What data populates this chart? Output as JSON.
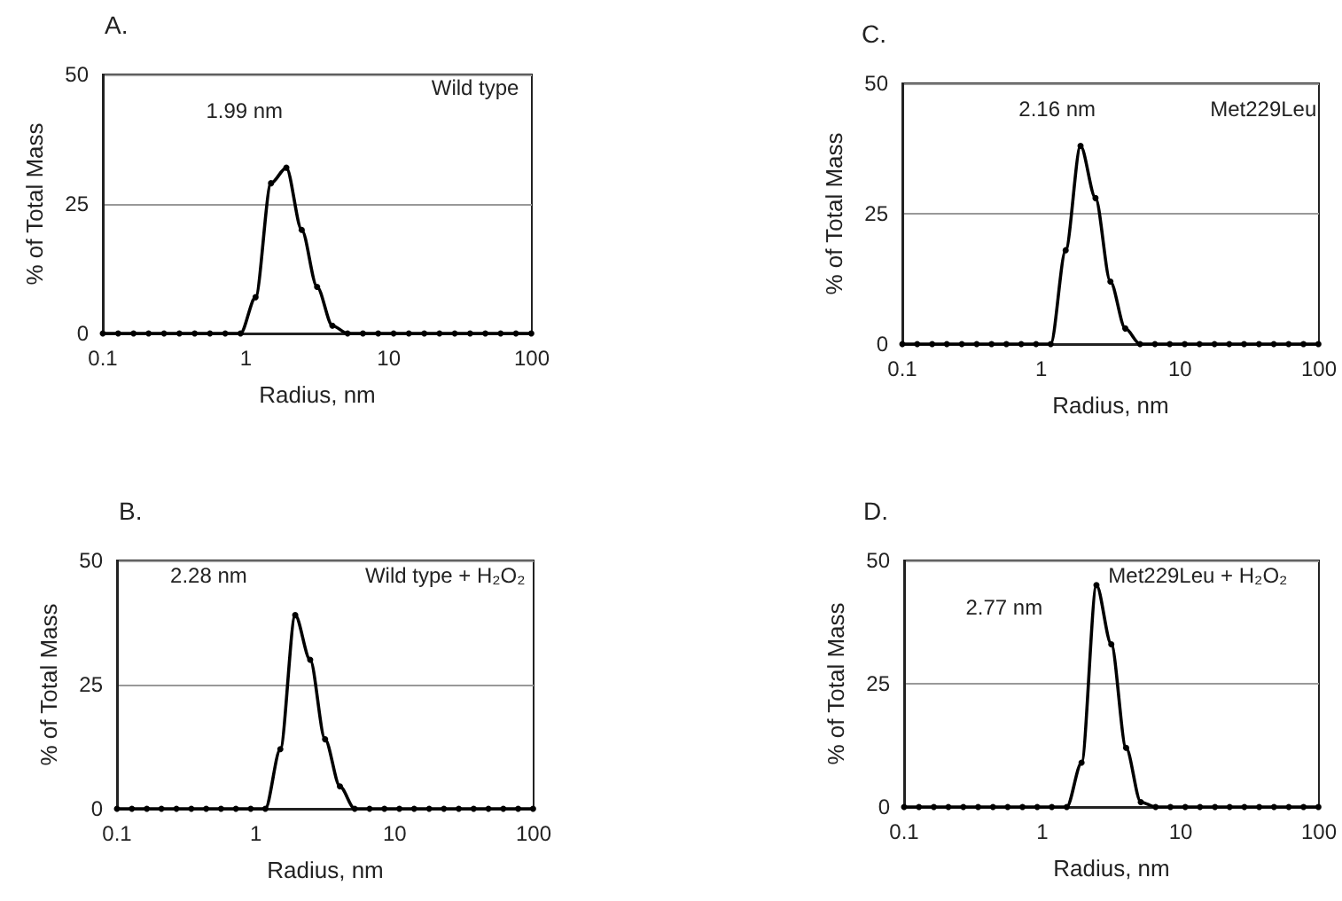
{
  "chart_data": [
    {
      "type": "line",
      "title": "A.",
      "xlabel": "Radius, nm",
      "ylabel": "% of Total Mass",
      "annotations": [
        "1.99 nm",
        "Wild type"
      ],
      "log": "x",
      "grid": "y",
      "marker": "circle",
      "line_style": "solid",
      "xlim": [
        0.1,
        100
      ],
      "xticks": [
        0.1,
        1,
        10,
        100
      ],
      "ylim": [
        0,
        50
      ],
      "yticks": [
        0,
        25,
        50
      ],
      "x": [
        0.1,
        0.128,
        0.164,
        0.209,
        0.268,
        0.343,
        0.439,
        0.561,
        0.718,
        0.918,
        1.17,
        1.5,
        1.92,
        2.46,
        3.15,
        4.03,
        5.15,
        6.59,
        8.43,
        10.8,
        13.8,
        17.7,
        22.6,
        28.9,
        37.0,
        47.3,
        60.5,
        77.4,
        99.1
      ],
      "series": [
        {
          "color": "#000000",
          "values": [
            0,
            0,
            0,
            0,
            0,
            0,
            0,
            0,
            0,
            0,
            7,
            29,
            32,
            20,
            9,
            1.5,
            0,
            0,
            0,
            0,
            0,
            0,
            0,
            0,
            0,
            0,
            0,
            0,
            0
          ]
        }
      ]
    },
    {
      "type": "line",
      "title": "C.",
      "xlabel": "Radius, nm",
      "ylabel": "% of Total Mass",
      "annotations": [
        "2.16 nm",
        "Met229Leu"
      ],
      "log": "x",
      "grid": "y",
      "marker": "circle",
      "line_style": "solid",
      "xlim": [
        0.1,
        100
      ],
      "xticks": [
        0.1,
        1,
        10,
        100
      ],
      "ylim": [
        0,
        50
      ],
      "yticks": [
        0,
        25,
        50
      ],
      "x": [
        0.1,
        0.128,
        0.164,
        0.209,
        0.268,
        0.343,
        0.439,
        0.561,
        0.718,
        0.918,
        1.17,
        1.5,
        1.92,
        2.46,
        3.15,
        4.03,
        5.15,
        6.59,
        8.43,
        10.8,
        13.8,
        17.7,
        22.6,
        28.9,
        37.0,
        47.3,
        60.5,
        77.4,
        99.1
      ],
      "series": [
        {
          "color": "#000000",
          "values": [
            0,
            0,
            0,
            0,
            0,
            0,
            0,
            0,
            0,
            0,
            0,
            18,
            38,
            28,
            12,
            3,
            0,
            0,
            0,
            0,
            0,
            0,
            0,
            0,
            0,
            0,
            0,
            0,
            0
          ]
        }
      ]
    },
    {
      "type": "line",
      "title": "B.",
      "xlabel": "Radius, nm",
      "ylabel": "% of Total Mass",
      "annotations": [
        "2.28 nm",
        "Wild type + H₂O₂"
      ],
      "log": "x",
      "grid": "y",
      "marker": "circle",
      "line_style": "solid",
      "xlim": [
        0.1,
        100
      ],
      "xticks": [
        0.1,
        1,
        10,
        100
      ],
      "ylim": [
        0,
        50
      ],
      "yticks": [
        0,
        25,
        50
      ],
      "x": [
        0.1,
        0.128,
        0.164,
        0.209,
        0.268,
        0.343,
        0.439,
        0.561,
        0.718,
        0.918,
        1.17,
        1.5,
        1.92,
        2.46,
        3.15,
        4.03,
        5.15,
        6.59,
        8.43,
        10.8,
        13.8,
        17.7,
        22.6,
        28.9,
        37.0,
        47.3,
        60.5,
        77.4,
        99.1
      ],
      "series": [
        {
          "color": "#000000",
          "values": [
            0,
            0,
            0,
            0,
            0,
            0,
            0,
            0,
            0,
            0,
            0,
            12,
            39,
            30,
            14,
            4.5,
            0,
            0,
            0,
            0,
            0,
            0,
            0,
            0,
            0,
            0,
            0,
            0,
            0
          ]
        }
      ]
    },
    {
      "type": "line",
      "title": "D.",
      "xlabel": "Radius, nm",
      "ylabel": "% of Total Mass",
      "annotations": [
        "2.77 nm",
        "Met229Leu + H₂O₂"
      ],
      "log": "x",
      "grid": "y",
      "marker": "circle",
      "line_style": "solid",
      "xlim": [
        0.1,
        100
      ],
      "xticks": [
        0.1,
        1,
        10,
        100
      ],
      "ylim": [
        0,
        50
      ],
      "yticks": [
        0,
        25,
        50
      ],
      "x": [
        0.1,
        0.128,
        0.164,
        0.209,
        0.268,
        0.343,
        0.439,
        0.561,
        0.718,
        0.918,
        1.17,
        1.5,
        1.92,
        2.46,
        3.15,
        4.03,
        5.15,
        6.59,
        8.43,
        10.8,
        13.8,
        17.7,
        22.6,
        28.9,
        37.0,
        47.3,
        60.5,
        77.4,
        99.1
      ],
      "series": [
        {
          "color": "#000000",
          "values": [
            0,
            0,
            0,
            0,
            0,
            0,
            0,
            0,
            0,
            0,
            0,
            0,
            9,
            45,
            33,
            12,
            1,
            0,
            0,
            0,
            0,
            0,
            0,
            0,
            0,
            0,
            0,
            0,
            0
          ]
        }
      ]
    }
  ]
}
